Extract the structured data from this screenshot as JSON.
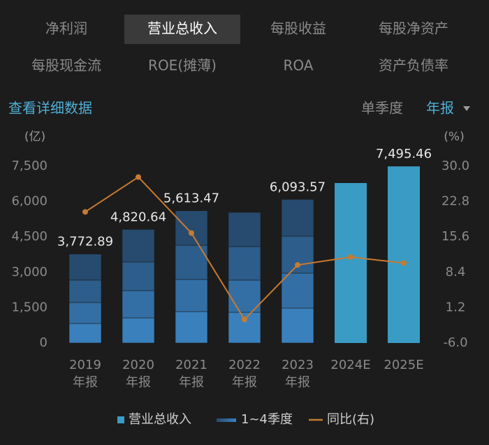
{
  "tabs": [
    "净利润",
    "营业总收入",
    "每股收益",
    "每股净资产",
    "每股现金流",
    "ROE(摊薄)",
    "ROA",
    "资产负债率"
  ],
  "selected_tab": 1,
  "detail_link": "查看详细数据",
  "period_options": [
    "单季度",
    "年报"
  ],
  "selected_period": 1,
  "chart_data": {
    "type": "bar",
    "y_unit": "(亿)",
    "y2_unit": "(%)",
    "categories": [
      [
        "2019",
        "年报"
      ],
      [
        "2020",
        "年报"
      ],
      [
        "2021",
        "年报"
      ],
      [
        "2022",
        "年报"
      ],
      [
        "2023",
        "年报"
      ],
      [
        "2024E"
      ],
      [
        "2025E"
      ]
    ],
    "ylim": [
      0,
      7500
    ],
    "yticks": [
      0,
      {
        "value": 1500,
        "label": "1,500"
      },
      {
        "value": 3000,
        "label": "3,000"
      },
      {
        "value": 4500,
        "label": "4,500"
      },
      {
        "value": 6000,
        "label": "6,000"
      },
      {
        "value": 7500,
        "label": "7,500"
      }
    ],
    "y2lim": [
      -6,
      30
    ],
    "y2ticks": [
      {
        "value": -6,
        "label": "-6.0"
      },
      1.2,
      8.4,
      15.6,
      22.8,
      {
        "value": 30,
        "label": "30.0"
      }
    ],
    "series": [
      {
        "name": "营业总收入",
        "color": "#3a9cc4",
        "values": [
          3772.89,
          4820.64,
          5613.47,
          5544,
          6093.57,
          6789,
          7495.46
        ],
        "value_labels": [
          "3,772.89",
          "4,820.64",
          "5,613.47",
          null,
          "6,093.57",
          null,
          "7,495.46"
        ]
      },
      {
        "name": "同比(右)",
        "color": "#c87a30",
        "axis": "y2",
        "type": "line",
        "values": [
          20.7,
          27.8,
          16.4,
          -1.2,
          9.9,
          11.5,
          10.3
        ]
      }
    ],
    "quarters": {
      "name": "1~4季度",
      "colors": [
        "#3a80bd",
        "#336fa5",
        "#2c5d8b",
        "#274b6f"
      ],
      "values": [
        [
          830,
          890,
          950,
          1102.89
        ],
        [
          1067,
          1156,
          1216,
          1381.64
        ],
        [
          1334,
          1364,
          1453,
          1462.47
        ],
        [
          1305,
          1364,
          1423,
          1452
        ],
        [
          1482,
          1482,
          1571,
          1558.57
        ],
        null,
        null
      ]
    }
  }
}
